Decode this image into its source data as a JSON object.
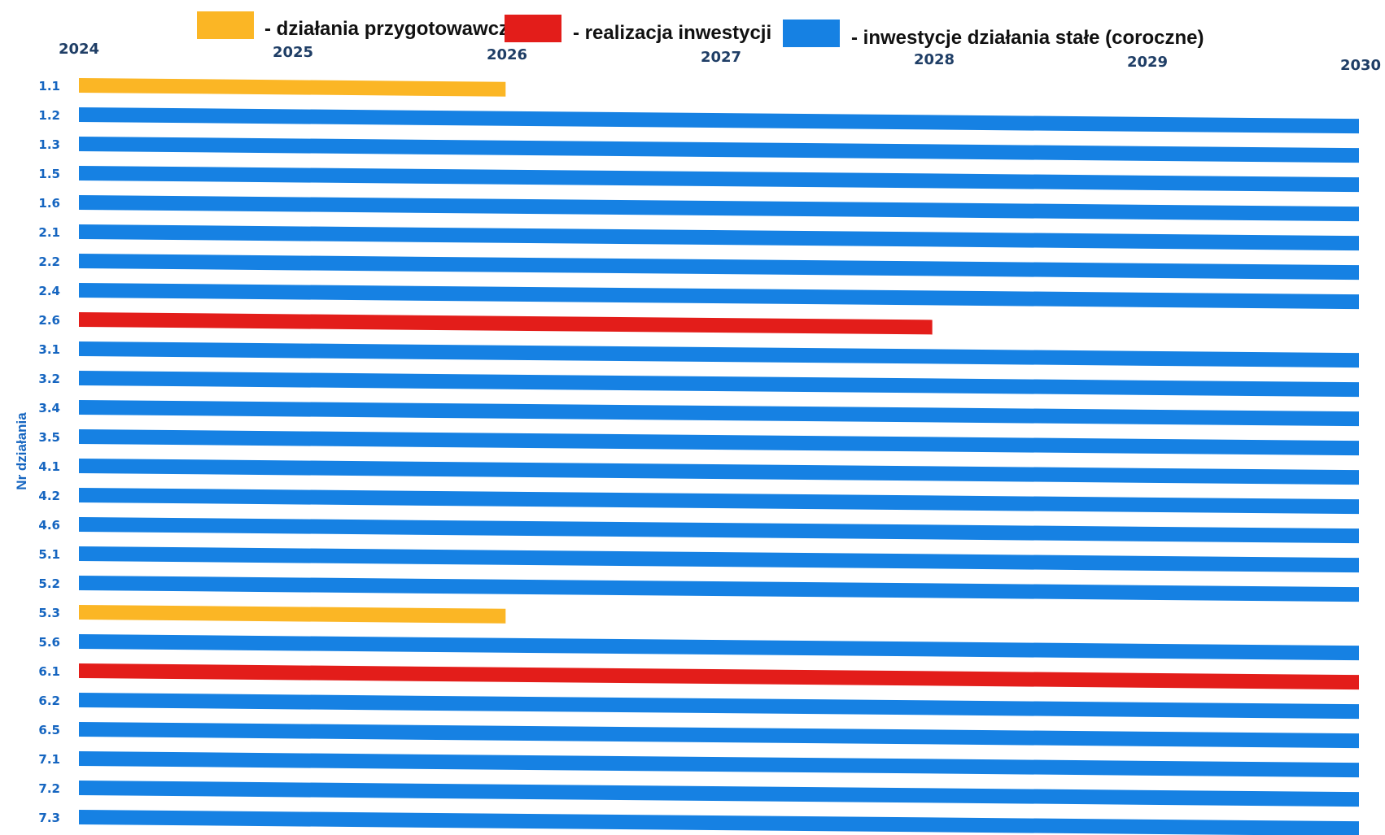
{
  "colors": {
    "preparatory": "#fbb625",
    "investment": "#e31d1a",
    "permanent": "#1681e3",
    "year_label": "#1f3e66",
    "row_label": "#1565c0"
  },
  "chart_data": {
    "type": "gantt",
    "ylabel": "Nr działania",
    "x_range": [
      2024,
      2030
    ],
    "years": [
      "2024",
      "2025",
      "2026",
      "2027",
      "2028",
      "2029",
      "2030"
    ],
    "legend": [
      {
        "key": "preparatory",
        "label": "- działania przygotowawcze"
      },
      {
        "key": "investment",
        "label": "- realizacja inwestycji"
      },
      {
        "key": "permanent",
        "label": "- inwestycje działania stałe (coroczne)"
      }
    ],
    "rows": [
      {
        "label": "1.1",
        "start": 2024,
        "end": 2026,
        "category": "preparatory"
      },
      {
        "label": "1.2",
        "start": 2024,
        "end": 2030,
        "category": "permanent"
      },
      {
        "label": "1.3",
        "start": 2024,
        "end": 2030,
        "category": "permanent"
      },
      {
        "label": "1.5",
        "start": 2024,
        "end": 2030,
        "category": "permanent"
      },
      {
        "label": "1.6",
        "start": 2024,
        "end": 2030,
        "category": "permanent"
      },
      {
        "label": "2.1",
        "start": 2024,
        "end": 2030,
        "category": "permanent"
      },
      {
        "label": "2.2",
        "start": 2024,
        "end": 2030,
        "category": "permanent"
      },
      {
        "label": "2.4",
        "start": 2024,
        "end": 2030,
        "category": "permanent"
      },
      {
        "label": "2.6",
        "start": 2024,
        "end": 2028,
        "category": "investment"
      },
      {
        "label": "3.1",
        "start": 2024,
        "end": 2030,
        "category": "permanent"
      },
      {
        "label": "3.2",
        "start": 2024,
        "end": 2030,
        "category": "permanent"
      },
      {
        "label": "3.4",
        "start": 2024,
        "end": 2030,
        "category": "permanent"
      },
      {
        "label": "3.5",
        "start": 2024,
        "end": 2030,
        "category": "permanent"
      },
      {
        "label": "4.1",
        "start": 2024,
        "end": 2030,
        "category": "permanent"
      },
      {
        "label": "4.2",
        "start": 2024,
        "end": 2030,
        "category": "permanent"
      },
      {
        "label": "4.6",
        "start": 2024,
        "end": 2030,
        "category": "permanent"
      },
      {
        "label": "5.1",
        "start": 2024,
        "end": 2030,
        "category": "permanent"
      },
      {
        "label": "5.2",
        "start": 2024,
        "end": 2030,
        "category": "permanent"
      },
      {
        "label": "5.3",
        "start": 2024,
        "end": 2026,
        "category": "preparatory"
      },
      {
        "label": "5.6",
        "start": 2024,
        "end": 2030,
        "category": "permanent"
      },
      {
        "label": "6.1",
        "start": 2024,
        "end": 2030,
        "category": "investment"
      },
      {
        "label": "6.2",
        "start": 2024,
        "end": 2030,
        "category": "permanent"
      },
      {
        "label": "6.5",
        "start": 2024,
        "end": 2030,
        "category": "permanent"
      },
      {
        "label": "7.1",
        "start": 2024,
        "end": 2030,
        "category": "permanent"
      },
      {
        "label": "7.2",
        "start": 2024,
        "end": 2030,
        "category": "permanent"
      },
      {
        "label": "7.3",
        "start": 2024,
        "end": 2030,
        "category": "permanent"
      }
    ]
  }
}
